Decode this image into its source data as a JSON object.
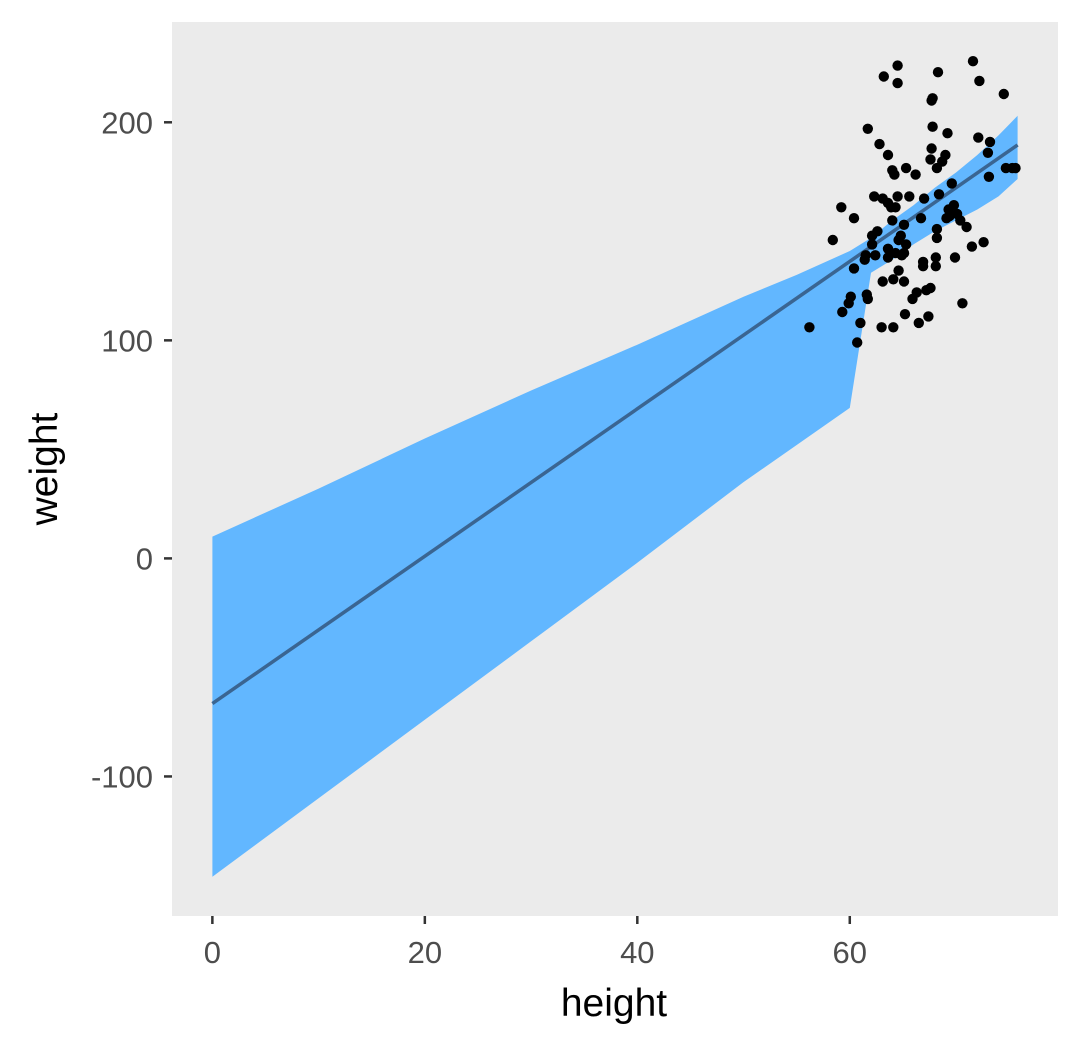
{
  "chart_data": {
    "type": "scatter",
    "xlabel": "height",
    "ylabel": "weight",
    "xlim": [
      -3.8,
      79.6
    ],
    "ylim": [
      -164,
      246
    ],
    "x_ticks": [
      0,
      20,
      40,
      60
    ],
    "y_ticks": [
      -100,
      0,
      100,
      200
    ],
    "grid": false,
    "colors": {
      "panel_background": "#ebebeb",
      "points": "#000000",
      "ribbon": "#62b7ff",
      "line": "#3a6592"
    },
    "points": [
      [
        56.2,
        106
      ],
      [
        58.4,
        146
      ],
      [
        59.2,
        161
      ],
      [
        59.3,
        113
      ],
      [
        59.9,
        117
      ],
      [
        60.1,
        120
      ],
      [
        60.4,
        133
      ],
      [
        60.4,
        156
      ],
      [
        60.7,
        99
      ],
      [
        61.0,
        108
      ],
      [
        61.4,
        137
      ],
      [
        61.5,
        139
      ],
      [
        61.6,
        121
      ],
      [
        61.7,
        119
      ],
      [
        61.7,
        197
      ],
      [
        62.1,
        148
      ],
      [
        62.1,
        144
      ],
      [
        62.3,
        166
      ],
      [
        62.4,
        139
      ],
      [
        62.6,
        150
      ],
      [
        62.8,
        190
      ],
      [
        63.0,
        106
      ],
      [
        63.1,
        127
      ],
      [
        63.1,
        165
      ],
      [
        63.2,
        221
      ],
      [
        63.6,
        163
      ],
      [
        63.6,
        142
      ],
      [
        63.6,
        138
      ],
      [
        63.6,
        185
      ],
      [
        63.9,
        161
      ],
      [
        64.0,
        155
      ],
      [
        64.0,
        178
      ],
      [
        64.1,
        106
      ],
      [
        64.1,
        128
      ],
      [
        64.2,
        176
      ],
      [
        64.3,
        140
      ],
      [
        64.3,
        161
      ],
      [
        64.5,
        226
      ],
      [
        64.5,
        166
      ],
      [
        64.5,
        218
      ],
      [
        64.6,
        132
      ],
      [
        64.6,
        146
      ],
      [
        64.8,
        148
      ],
      [
        64.9,
        139
      ],
      [
        65.1,
        127
      ],
      [
        65.1,
        140
      ],
      [
        65.1,
        153
      ],
      [
        65.2,
        112
      ],
      [
        65.3,
        144
      ],
      [
        65.3,
        179
      ],
      [
        65.6,
        166
      ],
      [
        65.9,
        119
      ],
      [
        66.2,
        176
      ],
      [
        66.3,
        122
      ],
      [
        66.5,
        108
      ],
      [
        66.7,
        156
      ],
      [
        66.9,
        136
      ],
      [
        66.9,
        134
      ],
      [
        67.0,
        165
      ],
      [
        67.2,
        123
      ],
      [
        67.4,
        111
      ],
      [
        67.6,
        124
      ],
      [
        67.6,
        183
      ],
      [
        67.7,
        188
      ],
      [
        67.7,
        210
      ],
      [
        67.8,
        211
      ],
      [
        67.8,
        198
      ],
      [
        68.1,
        138
      ],
      [
        68.1,
        134
      ],
      [
        68.2,
        147
      ],
      [
        68.2,
        151
      ],
      [
        68.2,
        179
      ],
      [
        68.3,
        223
      ],
      [
        68.4,
        167
      ],
      [
        68.7,
        182
      ],
      [
        69.0,
        185
      ],
      [
        69.1,
        156
      ],
      [
        69.2,
        195
      ],
      [
        69.3,
        160
      ],
      [
        69.4,
        157
      ],
      [
        69.6,
        172
      ],
      [
        69.8,
        162
      ],
      [
        69.9,
        138
      ],
      [
        70.1,
        158
      ],
      [
        70.4,
        155
      ],
      [
        70.6,
        117
      ],
      [
        71.0,
        152
      ],
      [
        71.5,
        143
      ],
      [
        71.6,
        228
      ],
      [
        72.1,
        193
      ],
      [
        72.2,
        219
      ],
      [
        72.6,
        145
      ],
      [
        73.0,
        186
      ],
      [
        73.1,
        175
      ],
      [
        73.2,
        191
      ],
      [
        74.5,
        213
      ],
      [
        74.7,
        179
      ],
      [
        75.3,
        179
      ],
      [
        75.6,
        179
      ]
    ],
    "fit_line": {
      "intercept": -66.6,
      "slope": 3.38,
      "x_range": [
        0,
        75.8
      ]
    },
    "confidence_band": {
      "x": [
        0,
        10,
        20,
        30,
        40,
        50,
        55,
        60,
        62,
        64,
        66,
        68,
        70,
        72,
        74,
        75.8
      ],
      "lower": [
        -146,
        -110,
        -74,
        -38,
        -2,
        35,
        52,
        69,
        131,
        137,
        144,
        150,
        155,
        160,
        166,
        174
      ],
      "upper": [
        10,
        32,
        55,
        77,
        98,
        120,
        130,
        141,
        147,
        155,
        162,
        170,
        177,
        185,
        194,
        203
      ]
    }
  }
}
